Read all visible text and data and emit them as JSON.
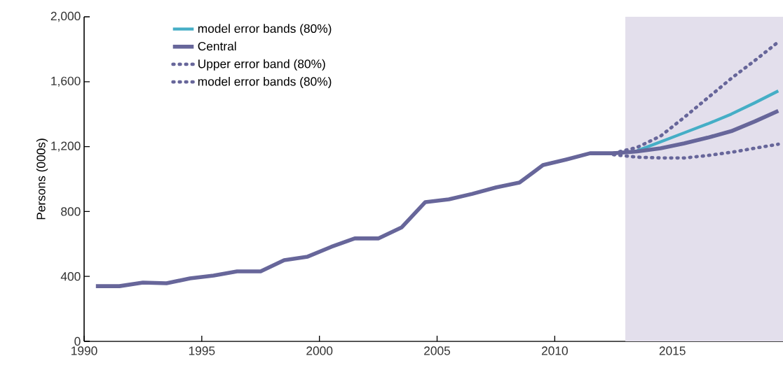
{
  "chart_data": {
    "type": "line",
    "ylabel": "Persons (000s)",
    "xlim": [
      1990,
      2019.7
    ],
    "ylim": [
      0,
      2000
    ],
    "xticks": [
      1990,
      1995,
      2000,
      2005,
      2010,
      2015
    ],
    "yticks": [
      0,
      400,
      800,
      {
        "value": 1200,
        "label": "1,200"
      },
      {
        "value": 1600,
        "label": "1,600"
      },
      {
        "value": 2000,
        "label": "2,000"
      }
    ],
    "grid": false,
    "legend": "top left",
    "marker": "none",
    "bands": [
      {
        "axis": "x",
        "from": 2013,
        "to": 2019.7,
        "color": "#e3dfec"
      }
    ],
    "series": [
      {
        "name": "model error bands (80%)",
        "color": "#45aec6",
        "line_style": "solid",
        "x": [
          2013.5,
          2014.5,
          2015.5,
          2016.5,
          2017.5,
          2018.5,
          2019.5
        ],
        "values": [
          1175,
          1230,
          1285,
          1340,
          1400,
          1470,
          1543
        ]
      },
      {
        "name": "Central",
        "color": "#67669a",
        "line_style": "solid",
        "x": [
          1990.5,
          1991.5,
          1992.5,
          1993.5,
          1994.5,
          1995.5,
          1996.5,
          1997.5,
          1998.5,
          1999.5,
          2000.5,
          2001.5,
          2002.5,
          2003.5,
          2004.5,
          2005.5,
          2006.5,
          2007.5,
          2008.5,
          2009.5,
          2010.5,
          2011.5,
          2012.5,
          2013.5,
          2014.5,
          2015.5,
          2016.5,
          2017.5,
          2018.5,
          2019.5
        ],
        "values": [
          340,
          340,
          362,
          358,
          388,
          405,
          431,
          431,
          500,
          522,
          582,
          634,
          634,
          703,
          858,
          875,
          909,
          948,
          978,
          1086,
          1121,
          1159,
          1159,
          1170,
          1190,
          1220,
          1255,
          1295,
          1355,
          1420
        ]
      },
      {
        "name": "Upper error band (80%)",
        "color": "#67669a",
        "line_style": "dotted",
        "x": [
          2012.5,
          2013.5,
          2014.5,
          2015.5,
          2016.5,
          2017.5,
          2018.5,
          2019.5
        ],
        "values": [
          1160,
          1195,
          1265,
          1380,
          1500,
          1620,
          1730,
          1845
        ]
      },
      {
        "name": "model error bands (80%)",
        "color": "#67669a",
        "line_style": "dotted",
        "x": [
          2012.5,
          2013.5,
          2014.5,
          2015.5,
          2016.5,
          2017.5,
          2018.5,
          2019.5
        ],
        "values": [
          1150,
          1135,
          1130,
          1130,
          1145,
          1165,
          1190,
          1215
        ]
      }
    ]
  }
}
